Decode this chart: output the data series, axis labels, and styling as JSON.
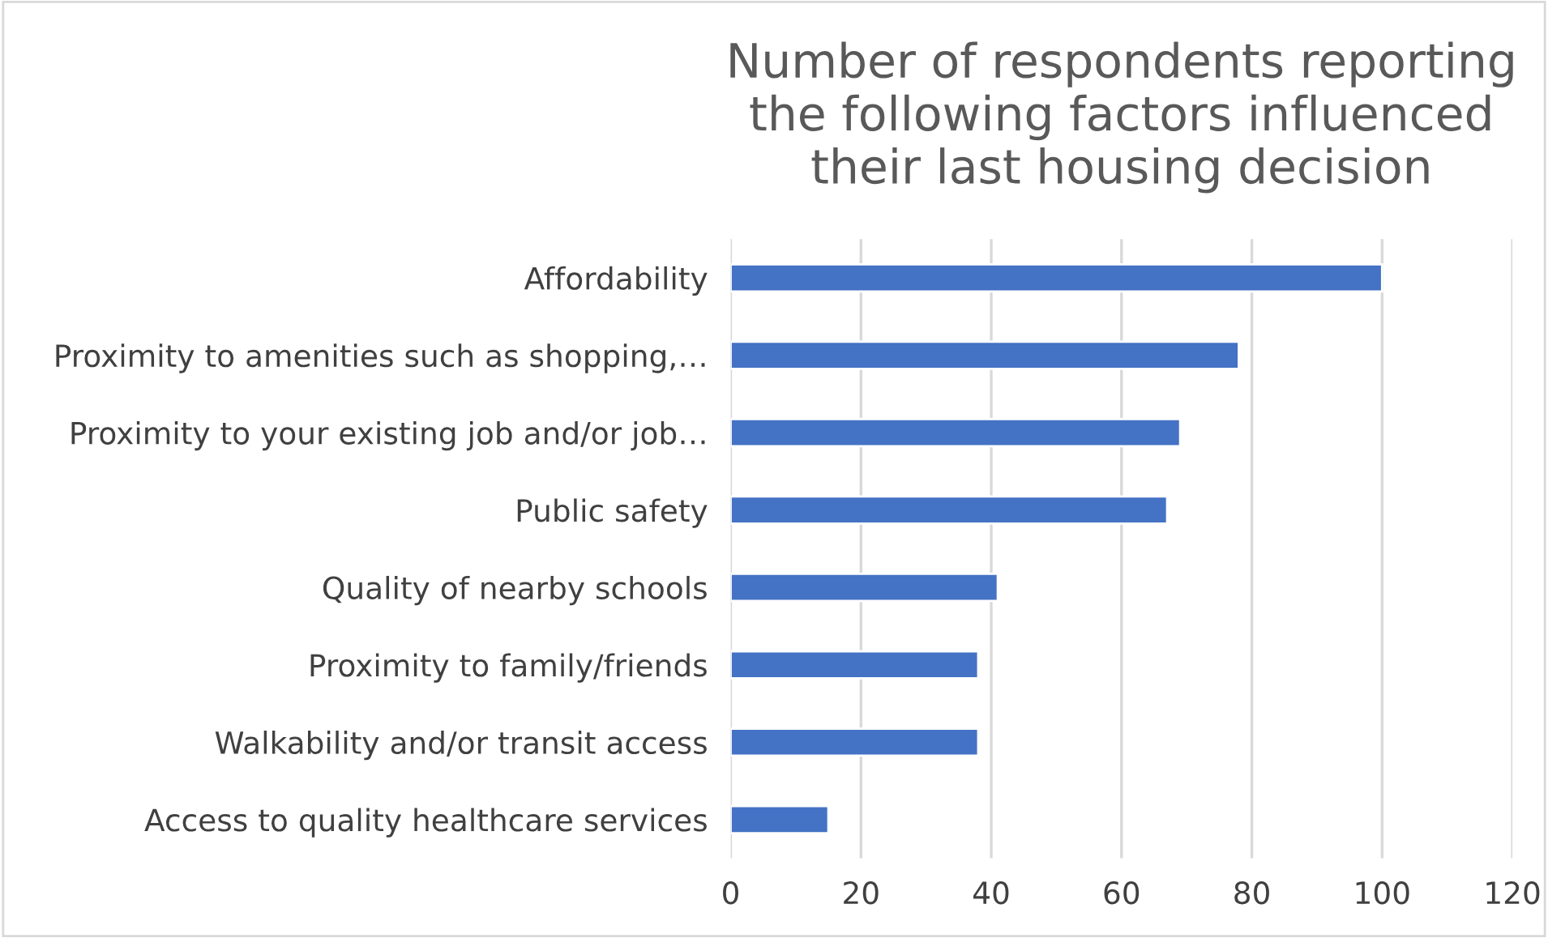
{
  "chart_data": {
    "type": "bar",
    "orientation": "horizontal",
    "title": "Number of respondents reporting the following factors influenced their last housing decision",
    "categories": [
      "Affordability",
      "Proximity to amenities such as shopping,…",
      "Proximity to your existing job and/or job…",
      "Public safety",
      "Quality of nearby schools",
      "Proximity to family/friends",
      "Walkability and/or transit access",
      "Access to quality healthcare services"
    ],
    "values": [
      100,
      78,
      69,
      67,
      41,
      38,
      38,
      15
    ],
    "color": "#4472c4",
    "xlim": [
      0,
      120
    ],
    "xticks": [
      0,
      20,
      40,
      60,
      80,
      100,
      120
    ],
    "grid": "x"
  }
}
